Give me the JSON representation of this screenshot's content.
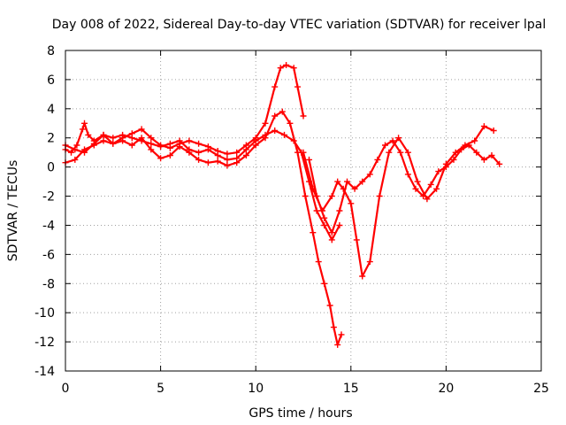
{
  "chart_data": {
    "type": "scatter",
    "title": "Day 008 of 2022, Sidereal Day-to-day VTEC variation (SDTVAR) for receiver lpal",
    "xlabel": "GPS time / hours",
    "ylabel": "SDTVAR / TECUs",
    "xlim": [
      0,
      25
    ],
    "ylim": [
      -14,
      8
    ],
    "xticks": [
      0,
      5,
      10,
      15,
      20,
      25
    ],
    "yticks": [
      -14,
      -12,
      -10,
      -8,
      -6,
      -4,
      -2,
      0,
      2,
      4,
      6,
      8
    ],
    "grid": true,
    "marker": "+",
    "series": [
      {
        "color": "#ff0000",
        "x": [
          0,
          0.3,
          0.6,
          0.9,
          1.0,
          1.2,
          1.5,
          2,
          2.5,
          3,
          3.5,
          4,
          4.5,
          5,
          5.5,
          6,
          6.5,
          7,
          7.5,
          8,
          8.5,
          9,
          9.5,
          10,
          10.5,
          11,
          11.3,
          11.6,
          12,
          12.2,
          12.5
        ],
        "y": [
          1.2,
          1.0,
          1.5,
          2.6,
          3.0,
          2.2,
          1.8,
          2.2,
          1.6,
          2.0,
          2.3,
          2.6,
          2.0,
          1.5,
          1.3,
          1.6,
          1.8,
          1.6,
          1.4,
          1.1,
          0.9,
          1.0,
          1.5,
          2.0,
          3.0,
          5.5,
          6.8,
          7.0,
          6.8,
          5.5,
          3.5
        ]
      },
      {
        "color": "#ff0000",
        "x": [
          0,
          0.5,
          1,
          1.5,
          2,
          2.5,
          3,
          3.5,
          4,
          4.5,
          5,
          5.5,
          6,
          6.5,
          7,
          7.5,
          8,
          8.5,
          9,
          9.5,
          10,
          10.5,
          11,
          11.4,
          11.8,
          12.2,
          12.6,
          13,
          13.3,
          13.6,
          13.9,
          14.1,
          14.3,
          14.5
        ],
        "y": [
          0.3,
          0.5,
          1.2,
          1.5,
          1.8,
          1.6,
          1.8,
          1.5,
          2.0,
          1.2,
          0.6,
          0.8,
          1.4,
          1.0,
          0.5,
          0.3,
          0.4,
          0.1,
          0.3,
          0.8,
          1.5,
          2.0,
          3.5,
          3.8,
          3.0,
          1.0,
          -2.0,
          -4.5,
          -6.5,
          -8.0,
          -9.5,
          -11.0,
          -12.2,
          -11.5
        ]
      },
      {
        "color": "#ff0000",
        "x": [
          12.5,
          13,
          13.5,
          14,
          14.3,
          14.6,
          15,
          15.3,
          15.6,
          16,
          16.5,
          17,
          17.5,
          18,
          18.5,
          19,
          19.5,
          20,
          20.5,
          21,
          21.5,
          22,
          22.5
        ],
        "y": [
          1.0,
          -1.5,
          -3.0,
          -2.0,
          -1.0,
          -1.5,
          -2.5,
          -5.0,
          -7.5,
          -6.5,
          -2.0,
          1.0,
          2.0,
          1.0,
          -1.0,
          -2.2,
          -1.5,
          0.2,
          1.0,
          1.5,
          1.8,
          2.8,
          2.5
        ]
      },
      {
        "color": "#ff0000",
        "x": [
          12.8,
          13.2,
          13.6,
          14,
          14.4,
          14.8,
          15.2,
          15.6,
          16,
          16.4,
          16.8,
          17.2,
          17.6,
          18,
          18.4,
          18.8,
          19.2,
          19.6,
          20,
          20.4,
          20.8,
          21.2,
          21.6,
          22,
          22.4,
          22.8
        ],
        "y": [
          0.5,
          -2.0,
          -3.5,
          -4.5,
          -3.0,
          -1.0,
          -1.5,
          -1.0,
          -0.5,
          0.5,
          1.5,
          1.8,
          1.0,
          -0.5,
          -1.5,
          -2.0,
          -1.2,
          -0.3,
          0.0,
          0.5,
          1.2,
          1.5,
          1.0,
          0.5,
          0.8,
          0.2
        ]
      },
      {
        "color": "#ff0000",
        "x": [
          0,
          0.5,
          1,
          1.5,
          2,
          2.5,
          3,
          3.5,
          4,
          4.5,
          5,
          5.5,
          6,
          6.5,
          7,
          7.5,
          8,
          8.5,
          9,
          9.5,
          10,
          10.5,
          11,
          11.5,
          12,
          12.4,
          12.8,
          13.2,
          13.6,
          14,
          14.4
        ],
        "y": [
          1.5,
          1.2,
          1.0,
          1.6,
          2.2,
          2.0,
          2.2,
          2.0,
          1.8,
          1.6,
          1.4,
          1.6,
          1.8,
          1.2,
          1.0,
          1.2,
          0.8,
          0.5,
          0.6,
          1.2,
          1.8,
          2.2,
          2.5,
          2.2,
          1.8,
          1.0,
          -1.0,
          -3.0,
          -4.0,
          -5.0,
          -4.0
        ]
      }
    ]
  }
}
